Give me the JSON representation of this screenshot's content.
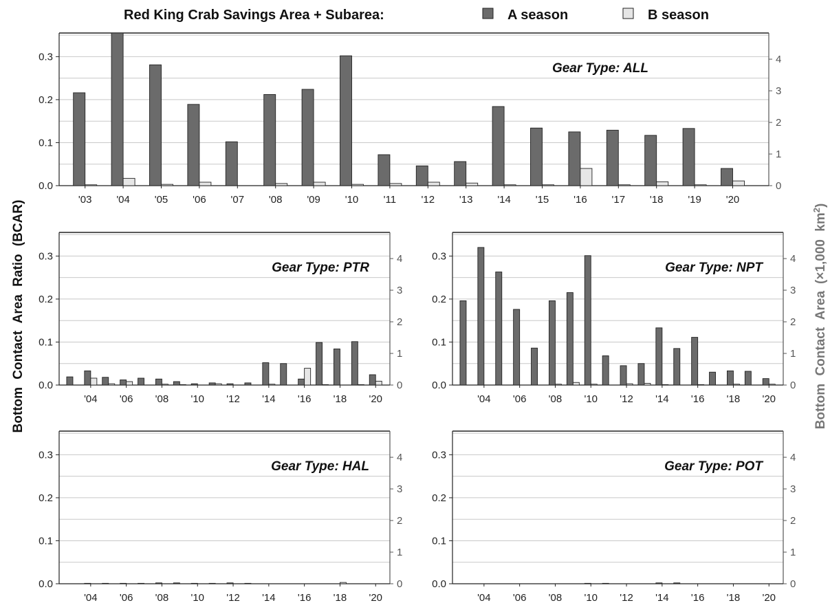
{
  "header": {
    "title": "Red King Crab Savings Area + Subarea:",
    "legend_a": "A season",
    "legend_b": "B season"
  },
  "y_label_left": "Bottom Contact Area Ratio (BCAR)",
  "y_label_right_main": "Bottom Contact Area",
  "y_label_right_unit_pre": "(×1,000 km",
  "y_label_right_unit_sup": "2",
  "y_label_right_unit_post": ")",
  "colors": {
    "a_season": "#6b6b6b",
    "b_season": "#e6e6e6",
    "right_axis": "#555555",
    "grid": "#c8c8c8"
  },
  "chart_data": [
    {
      "type": "bar",
      "panel": "ALL",
      "gear_label": "Gear Type: ALL",
      "years": [
        2003,
        2004,
        2005,
        2006,
        2007,
        2008,
        2009,
        2010,
        2011,
        2012,
        2013,
        2014,
        2015,
        2016,
        2017,
        2018,
        2019,
        2020
      ],
      "x_tick_labels": [
        "'03",
        "'04",
        "'05",
        "'06",
        "'07",
        "'08",
        "'09",
        "'10",
        "'11",
        "'12",
        "'13",
        "'14",
        "'15",
        "'16",
        "'17",
        "'18",
        "'19",
        "'20"
      ],
      "series": [
        {
          "name": "A season",
          "values": [
            0.216,
            0.355,
            0.281,
            0.189,
            0.102,
            0.212,
            0.224,
            0.302,
            0.072,
            0.046,
            0.056,
            0.184,
            0.134,
            0.125,
            0.129,
            0.117,
            0.133,
            0.04
          ]
        },
        {
          "name": "B season",
          "values": [
            0.002,
            0.017,
            0.003,
            0.008,
            0.0,
            0.005,
            0.008,
            0.003,
            0.005,
            0.008,
            0.006,
            0.002,
            0.002,
            0.04,
            0.002,
            0.009,
            0.002,
            0.011
          ]
        }
      ],
      "ylim": [
        0,
        0.355
      ],
      "y_ticks": [
        "0.0",
        "0.1",
        "0.2",
        "0.3"
      ],
      "y2_ticks": [
        "0",
        "1",
        "2",
        "3",
        "4"
      ]
    },
    {
      "type": "bar",
      "panel": "PTR",
      "gear_label": "Gear Type: PTR",
      "years": [
        2003,
        2004,
        2005,
        2006,
        2007,
        2008,
        2009,
        2010,
        2011,
        2012,
        2013,
        2014,
        2015,
        2016,
        2017,
        2018,
        2019,
        2020
      ],
      "x_tick_labels": [
        "'04",
        "'06",
        "'08",
        "'10",
        "'12",
        "'14",
        "'16",
        "'18",
        "'20"
      ],
      "series": [
        {
          "name": "A season",
          "values": [
            0.019,
            0.033,
            0.018,
            0.012,
            0.016,
            0.014,
            0.008,
            0.003,
            0.005,
            0.003,
            0.005,
            0.052,
            0.05,
            0.014,
            0.099,
            0.084,
            0.101,
            0.024
          ]
        },
        {
          "name": "B season",
          "values": [
            0.0,
            0.016,
            0.003,
            0.008,
            0.0,
            0.002,
            0.001,
            0.0,
            0.003,
            0.0,
            0.0,
            0.002,
            0.0,
            0.039,
            0.001,
            0.0,
            0.001,
            0.009
          ]
        }
      ],
      "ylim": [
        0,
        0.355
      ],
      "y_ticks": [
        "0.0",
        "0.1",
        "0.2",
        "0.3"
      ],
      "y2_ticks": [
        "0",
        "1",
        "2",
        "3",
        "4"
      ]
    },
    {
      "type": "bar",
      "panel": "NPT",
      "gear_label": "Gear Type: NPT",
      "years": [
        2003,
        2004,
        2005,
        2006,
        2007,
        2008,
        2009,
        2010,
        2011,
        2012,
        2013,
        2014,
        2015,
        2016,
        2017,
        2018,
        2019,
        2020
      ],
      "x_tick_labels": [
        "'04",
        "'06",
        "'08",
        "'10",
        "'12",
        "'14",
        "'16",
        "'18",
        "'20"
      ],
      "series": [
        {
          "name": "A season",
          "values": [
            0.196,
            0.32,
            0.263,
            0.176,
            0.086,
            0.196,
            0.215,
            0.301,
            0.068,
            0.045,
            0.05,
            0.133,
            0.085,
            0.111,
            0.03,
            0.033,
            0.032,
            0.015
          ]
        },
        {
          "name": "B season",
          "values": [
            0.0,
            0.0,
            0.0,
            0.0,
            0.0,
            0.002,
            0.006,
            0.002,
            0.0,
            0.003,
            0.004,
            0.001,
            0.0,
            0.001,
            0.0,
            0.002,
            0.0,
            0.002
          ]
        }
      ],
      "ylim": [
        0,
        0.355
      ],
      "y_ticks": [
        "0.0",
        "0.1",
        "0.2",
        "0.3"
      ],
      "y2_ticks": [
        "0",
        "1",
        "2",
        "3",
        "4"
      ]
    },
    {
      "type": "bar",
      "panel": "HAL",
      "gear_label": "Gear Type: HAL",
      "years": [
        2003,
        2004,
        2005,
        2006,
        2007,
        2008,
        2009,
        2010,
        2011,
        2012,
        2013,
        2014,
        2015,
        2016,
        2017,
        2018,
        2019,
        2020
      ],
      "x_tick_labels": [
        "'04",
        "'06",
        "'08",
        "'10",
        "'12",
        "'14",
        "'16",
        "'18",
        "'20"
      ],
      "series": [
        {
          "name": "A season",
          "values": [
            0.0,
            0.001,
            0.001,
            0.001,
            0.001,
            0.002,
            0.002,
            0.001,
            0.001,
            0.002,
            0.001,
            0.0,
            0.0,
            0.0,
            0.0,
            0.0,
            0.0,
            0.0
          ]
        },
        {
          "name": "B season",
          "values": [
            0.0,
            0.0,
            0.0,
            0.0,
            0.0,
            0.0,
            0.0,
            0.0,
            0.0,
            0.0,
            0.0,
            0.0,
            0.0,
            0.0,
            0.0,
            0.003,
            0.0,
            0.0
          ]
        }
      ],
      "ylim": [
        0,
        0.355
      ],
      "y_ticks": [
        "0.0",
        "0.1",
        "0.2",
        "0.3"
      ],
      "y2_ticks": [
        "0",
        "1",
        "2",
        "3",
        "4"
      ]
    },
    {
      "type": "bar",
      "panel": "POT",
      "gear_label": "Gear Type: POT",
      "years": [
        2003,
        2004,
        2005,
        2006,
        2007,
        2008,
        2009,
        2010,
        2011,
        2012,
        2013,
        2014,
        2015,
        2016,
        2017,
        2018,
        2019,
        2020
      ],
      "x_tick_labels": [
        "'04",
        "'06",
        "'08",
        "'10",
        "'12",
        "'14",
        "'16",
        "'18",
        "'20"
      ],
      "series": [
        {
          "name": "A season",
          "values": [
            0.0,
            0.0,
            0.0,
            0.0,
            0.0,
            0.0,
            0.0,
            0.001,
            0.001,
            0.0,
            0.0,
            0.002,
            0.002,
            0.0,
            0.0,
            0.0,
            0.0,
            0.0
          ]
        },
        {
          "name": "B season",
          "values": [
            0.0,
            0.0,
            0.0,
            0.0,
            0.0,
            0.0,
            0.0,
            0.0,
            0.0,
            0.0,
            0.0,
            0.0,
            0.0,
            0.0,
            0.0,
            0.0,
            0.0,
            0.0
          ]
        }
      ],
      "ylim": [
        0,
        0.355
      ],
      "y_ticks": [
        "0.0",
        "0.1",
        "0.2",
        "0.3"
      ],
      "y2_ticks": [
        "0",
        "1",
        "2",
        "3",
        "4"
      ]
    }
  ]
}
